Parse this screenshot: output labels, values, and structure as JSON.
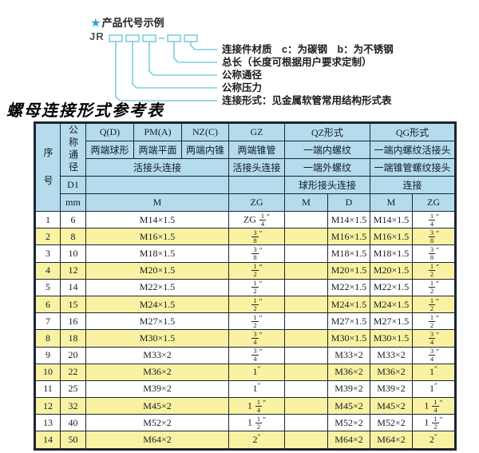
{
  "colors": {
    "header_bg": "#b4dcec",
    "row_alt": "#f8f2a2",
    "border": "#1d2433",
    "leader_line": "#7ecde0",
    "star": "#2fa8c4"
  },
  "diagram": {
    "star": "★",
    "title": "产品代号示例",
    "code_prefix": "JR",
    "labels": [
      "连接件材质　c：为碳钢　b：为不锈钢",
      "总长（长度可根据用户要求定制）",
      "公称通径",
      "公称压力",
      "连接形式：见金属软管常用结构形式表"
    ]
  },
  "table": {
    "title": "螺母连接形式参考表",
    "header": {
      "seq": "序号",
      "dn": "公称通径",
      "d1": "D1",
      "mm": "mm",
      "m": "M",
      "zg": "ZG",
      "cols": [
        {
          "code": "Q(D)",
          "desc": "两端球形"
        },
        {
          "code": "PM(A)",
          "desc": "两端平面"
        },
        {
          "code": "NZ(C)",
          "desc": "两端内锥"
        },
        {
          "code": "GZ",
          "desc": "两端锥管"
        }
      ],
      "union_label": "活接头连接",
      "gz_union_label": "活接头连接",
      "qz": {
        "code": "QZ形式",
        "row2": "一端内螺纹",
        "row3": "一端外螺纹",
        "row4": "球形接头连接",
        "sub": [
          "M",
          "D"
        ]
      },
      "qg": {
        "code": "QG形式",
        "row2": "一端内螺纹活接头",
        "row3": "一端锥管螺纹接头",
        "row4": "连接",
        "sub": [
          "M",
          "ZG"
        ]
      }
    },
    "rows": [
      {
        "seq": "1",
        "dn": "6",
        "m": "M14×1.5",
        "zg": "ZG 1/4\"",
        "qz_m": "",
        "qz_d": "M14×1.5",
        "qg_m": "M14×1.5",
        "qg_zg": "1/4\""
      },
      {
        "seq": "2",
        "dn": "8",
        "m": "M16×1.5",
        "zg": "3/8\"",
        "qz_m": "",
        "qz_d": "M16×1.5",
        "qg_m": "M16×1.5",
        "qg_zg": "3/8\""
      },
      {
        "seq": "3",
        "dn": "10",
        "m": "M18×1.5",
        "zg": "3/8\"",
        "qz_m": "",
        "qz_d": "M18×1.5",
        "qg_m": "M18×1.5",
        "qg_zg": "3/8\""
      },
      {
        "seq": "4",
        "dn": "12",
        "m": "M20×1.5",
        "zg": "1/2\"",
        "qz_m": "",
        "qz_d": "M20×1.5",
        "qg_m": "M20×1.5",
        "qg_zg": "1/2\""
      },
      {
        "seq": "5",
        "dn": "14",
        "m": "M22×1.5",
        "zg": "1/2\"",
        "qz_m": "",
        "qz_d": "M22×1.5",
        "qg_m": "M22×1.5",
        "qg_zg": "1/2\""
      },
      {
        "seq": "6",
        "dn": "15",
        "m": "M24×1.5",
        "zg": "1/2\"",
        "qz_m": "",
        "qz_d": "M24×1.5",
        "qg_m": "M24×1.5",
        "qg_zg": "1/2\""
      },
      {
        "seq": "7",
        "dn": "16",
        "m": "M27×1.5",
        "zg": "1/2\"",
        "qz_m": "",
        "qz_d": "M27×1.5",
        "qg_m": "M27×1.5",
        "qg_zg": "1/2\""
      },
      {
        "seq": "8",
        "dn": "18",
        "m": "M30×1.5",
        "zg": "3/4\"",
        "qz_m": "",
        "qz_d": "M30×1.5",
        "qg_m": "M30×1.5",
        "qg_zg": "3/4\""
      },
      {
        "seq": "9",
        "dn": "20",
        "m": "M33×2",
        "zg": "3/4\"",
        "qz_m": "",
        "qz_d": "M33×2",
        "qg_m": "M33×2",
        "qg_zg": "3/4\""
      },
      {
        "seq": "10",
        "dn": "22",
        "m": "M36×2",
        "zg": "1\"",
        "qz_m": "",
        "qz_d": "M36×2",
        "qg_m": "M36×2",
        "qg_zg": "1\""
      },
      {
        "seq": "11",
        "dn": "25",
        "m": "M39×2",
        "zg": "1\"",
        "qz_m": "",
        "qz_d": "M39×2",
        "qg_m": "M39×2",
        "qg_zg": "1\""
      },
      {
        "seq": "12",
        "dn": "32",
        "m": "M45×2",
        "zg": "1 1/4\"",
        "qz_m": "",
        "qz_d": "M45×2",
        "qg_m": "M45×2",
        "qg_zg": "1 1/4\""
      },
      {
        "seq": "13",
        "dn": "40",
        "m": "M52×2",
        "zg": "1 1/2\"",
        "qz_m": "",
        "qz_d": "M52×2",
        "qg_m": "M52×2",
        "qg_zg": "1 1/2\""
      },
      {
        "seq": "14",
        "dn": "50",
        "m": "M64×2",
        "zg": "2\"",
        "qz_m": "",
        "qz_d": "M64×2",
        "qg_m": "M64×2",
        "qg_zg": "2\""
      }
    ]
  }
}
